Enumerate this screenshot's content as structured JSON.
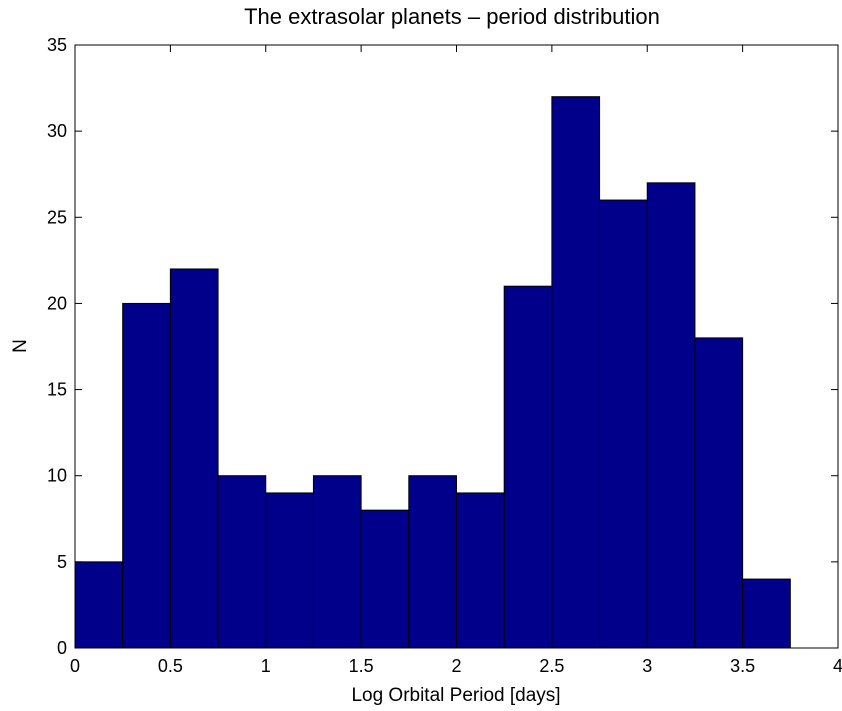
{
  "chart_data": {
    "type": "bar",
    "title": "The extrasolar planets – period distribution",
    "xlabel": "Log Orbital Period [days]",
    "ylabel": "N",
    "xlim": [
      0,
      4
    ],
    "ylim": [
      0,
      35
    ],
    "x_ticks": [
      "0",
      "0.5",
      "1",
      "1.5",
      "2",
      "2.5",
      "3",
      "3.5",
      "4"
    ],
    "y_ticks": [
      "0",
      "5",
      "10",
      "15",
      "20",
      "25",
      "30",
      "35"
    ],
    "bin_width": 0.25,
    "bins": [
      {
        "x_start": 0.0,
        "value": 5
      },
      {
        "x_start": 0.25,
        "value": 20
      },
      {
        "x_start": 0.5,
        "value": 22
      },
      {
        "x_start": 0.75,
        "value": 10
      },
      {
        "x_start": 1.0,
        "value": 9
      },
      {
        "x_start": 1.25,
        "value": 10
      },
      {
        "x_start": 1.5,
        "value": 8
      },
      {
        "x_start": 1.75,
        "value": 10
      },
      {
        "x_start": 2.0,
        "value": 9
      },
      {
        "x_start": 2.25,
        "value": 21
      },
      {
        "x_start": 2.5,
        "value": 32
      },
      {
        "x_start": 2.75,
        "value": 26
      },
      {
        "x_start": 3.0,
        "value": 27
      },
      {
        "x_start": 3.25,
        "value": 18
      },
      {
        "x_start": 3.5,
        "value": 4
      }
    ],
    "bar_color": "#00008b",
    "grid": false,
    "legend": "none"
  }
}
